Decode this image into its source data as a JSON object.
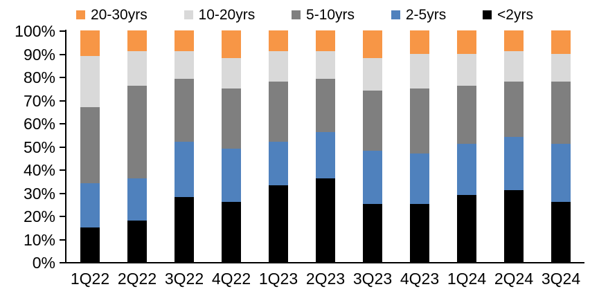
{
  "chart_data": {
    "type": "bar",
    "variant": "stacked-100-percent-column",
    "title": "",
    "xlabel": "",
    "ylabel": "",
    "ylim": [
      0,
      100
    ],
    "grid": false,
    "legend_position": "top",
    "legend_order": [
      "20-30yrs",
      "10-20yrs",
      "5-10yrs",
      "2-5yrs",
      "<2yrs"
    ],
    "y_ticks": [
      "0%",
      "10%",
      "20%",
      "30%",
      "40%",
      "50%",
      "60%",
      "70%",
      "80%",
      "90%",
      "100%"
    ],
    "categories": [
      "1Q22",
      "2Q22",
      "3Q22",
      "4Q22",
      "1Q23",
      "2Q23",
      "3Q23",
      "4Q23",
      "1Q24",
      "2Q24",
      "3Q24"
    ],
    "series": [
      {
        "name": "<2yrs",
        "color": "#000000",
        "values": [
          15,
          18,
          28,
          26,
          33,
          36,
          25,
          25,
          29,
          31,
          26
        ]
      },
      {
        "name": "2-5yrs",
        "color": "#4F81BD",
        "values": [
          19,
          18,
          24,
          23,
          19,
          20,
          23,
          22,
          22,
          23,
          25
        ]
      },
      {
        "name": "5-10yrs",
        "color": "#7F7F7F",
        "values": [
          33,
          40,
          27,
          26,
          26,
          23,
          26,
          28,
          25,
          24,
          27
        ]
      },
      {
        "name": "10-20yrs",
        "color": "#D9D9D9",
        "values": [
          22,
          15,
          12,
          13,
          13,
          12,
          14,
          15,
          14,
          13,
          12
        ]
      },
      {
        "name": "20-30yrs",
        "color": "#F79646",
        "values": [
          11,
          9,
          9,
          12,
          9,
          9,
          12,
          10,
          10,
          9,
          10
        ]
      }
    ],
    "axis_color": "#000000",
    "text_color": "#000000"
  }
}
